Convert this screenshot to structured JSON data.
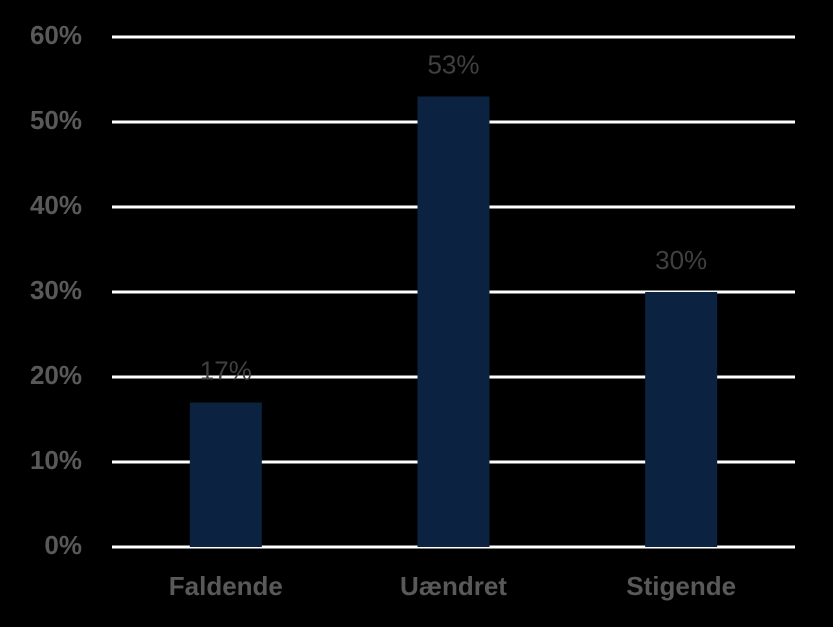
{
  "chart_data": {
    "type": "bar",
    "categories": [
      "Faldende",
      "Uændret",
      "Stigende"
    ],
    "values": [
      17,
      53,
      30
    ],
    "value_labels": [
      "17%",
      "53%",
      "30%"
    ],
    "color": "#0b2240",
    "ylim": [
      0,
      60
    ],
    "yticks": [
      {
        "value": 0,
        "label": "0%"
      },
      {
        "value": 10,
        "label": "10%"
      },
      {
        "value": 20,
        "label": "20%"
      },
      {
        "value": 30,
        "label": "30%"
      },
      {
        "value": 40,
        "label": "40%"
      },
      {
        "value": 50,
        "label": "50%"
      },
      {
        "value": 60,
        "label": "60%"
      }
    ],
    "grid": true
  }
}
